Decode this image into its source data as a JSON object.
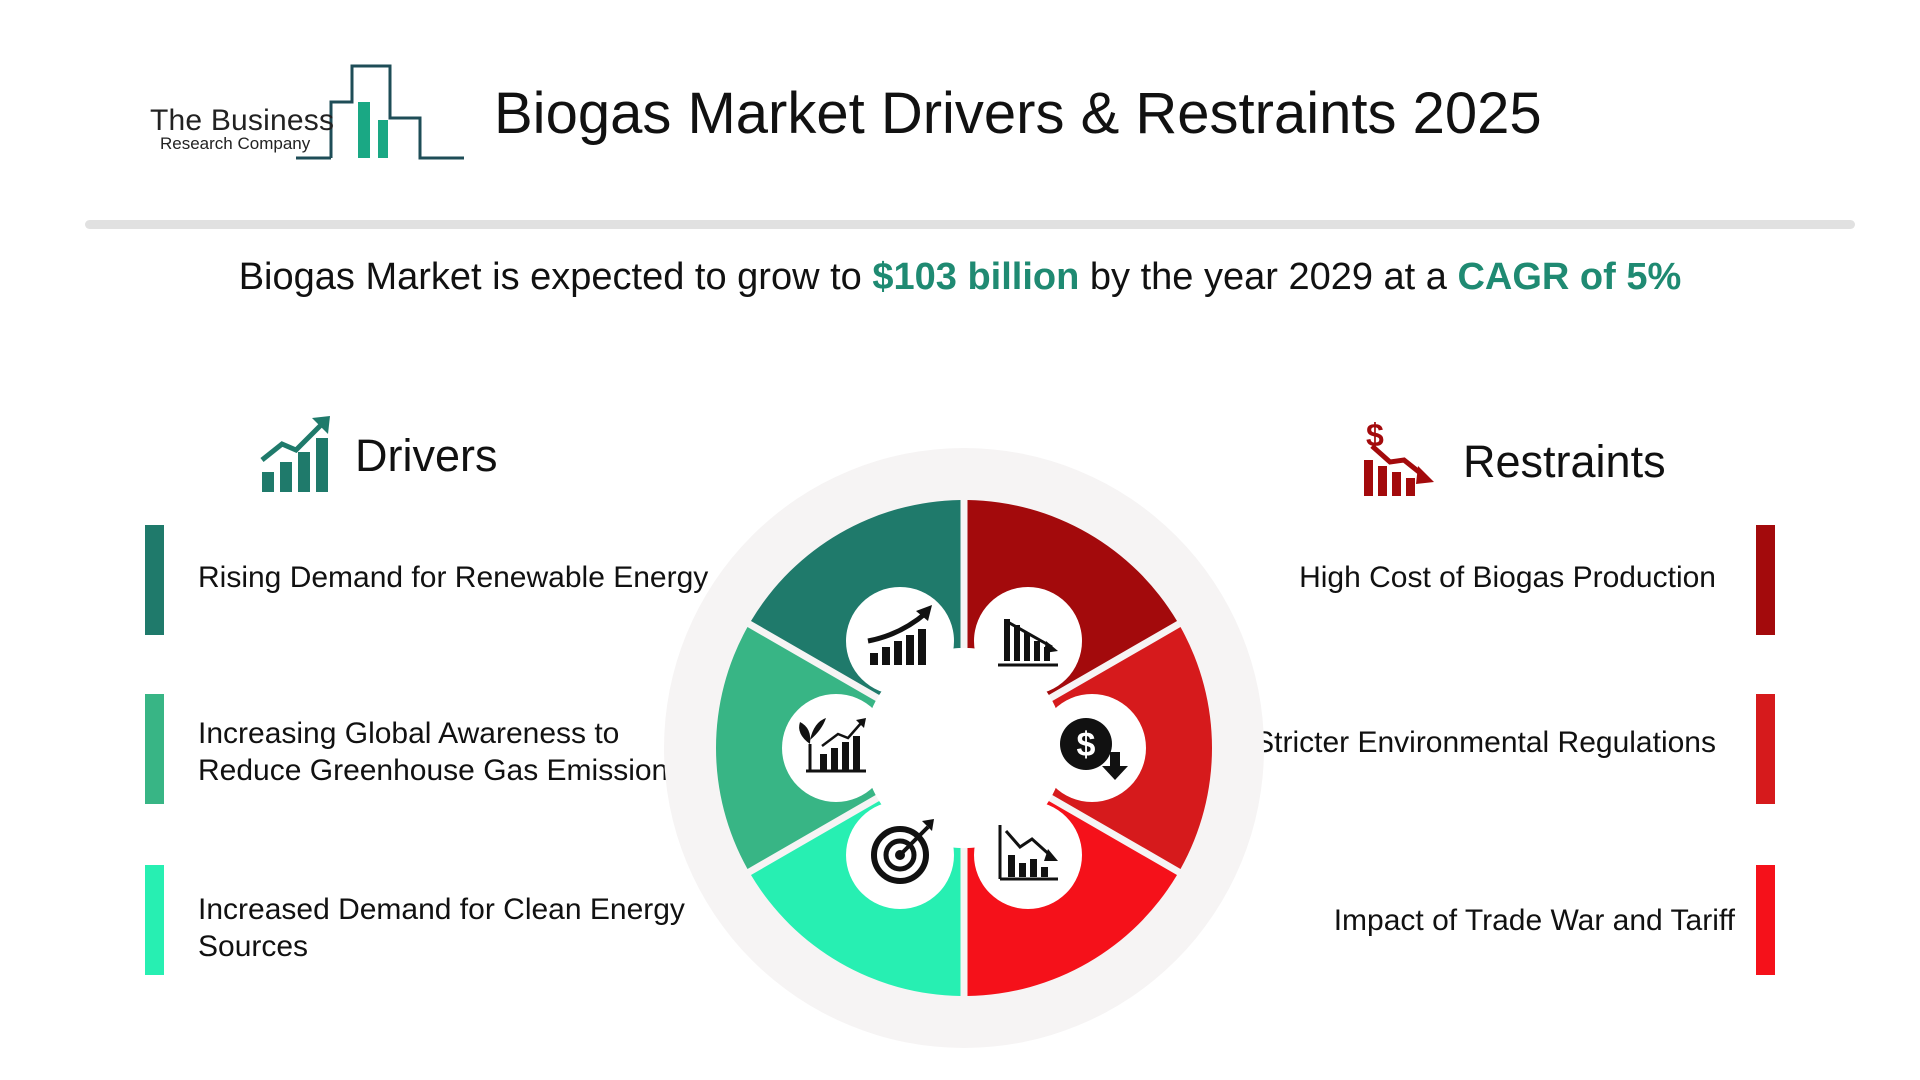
{
  "brand": {
    "line1": "The Business",
    "line2": "Research Company"
  },
  "title": "Biogas Market Drivers & Restraints 2025",
  "summary": {
    "prefix": "Biogas Market is expected to grow to ",
    "value": "$103 billion",
    "middle": " by the year 2029 at a ",
    "cagr": "CAGR of 5%"
  },
  "drivers": {
    "heading": "Drivers",
    "icon": "growth-chart-icon",
    "items": [
      {
        "text": "Rising Demand for Renewable Energy",
        "color": "#1f7a6b"
      },
      {
        "text": "Increasing Global Awareness to Reduce Greenhouse Gas Emissions",
        "color": "#38b585"
      },
      {
        "text": "Increased Demand for Clean Energy Sources",
        "color": "#27efb2"
      }
    ]
  },
  "restraints": {
    "heading": "Restraints",
    "icon": "dollar-decline-chart-icon",
    "items": [
      {
        "text": "High Cost of Biogas Production",
        "color": "#a30a0c"
      },
      {
        "text": "Stricter Environmental Regulations",
        "color": "#d61a1c"
      },
      {
        "text": "Impact of Trade War and Tariff",
        "color": "#f5111a"
      }
    ]
  },
  "wheel_icons": [
    "growth-chart-icon",
    "declining-bars-icon",
    "dollar-down-icon",
    "declining-chart-icon",
    "target-icon",
    "plant-growth-chart-icon"
  ]
}
